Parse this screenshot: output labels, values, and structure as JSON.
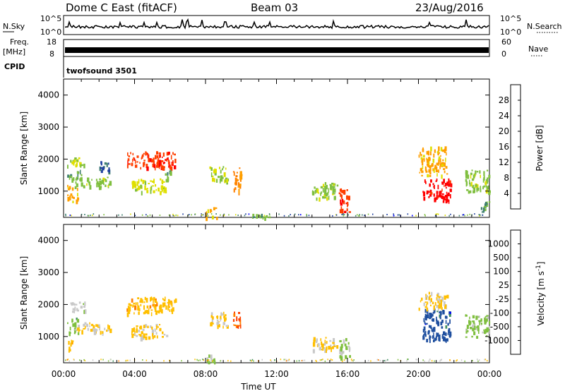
{
  "header": {
    "station": "Dome C East (fitACF)",
    "beam": "Beam 03",
    "date": "23/Aug/2016"
  },
  "strip_labels": {
    "nsky": "N.Sky",
    "nsky_top": "10^5",
    "nsky_bottom": "10^0",
    "nsearch": "N.Search",
    "nsearch_top": "10^5",
    "nsearch_bottom": "10^0",
    "freq": "Freq.",
    "freq_unit": "[MHz]",
    "freq_top": "18",
    "freq_bottom": "8",
    "nave": "Nave",
    "nave_top": "60",
    "nave_bottom": "0",
    "cpid": "CPID",
    "cpid_value": "twofsound 3501"
  },
  "colors": {
    "power": [
      "#0000ff",
      "#1f3f9f",
      "#3f7f6f",
      "#7fbf3f",
      "#dfdf00",
      "#ff9f00",
      "#ff7f00",
      "#ff3f00",
      "#ff0000"
    ],
    "velocity": [
      "#ff0000",
      "#ff4000",
      "#ff8000",
      "#ffbf00",
      "#c8c8c8",
      "#7fbf3f",
      "#3f8f5f",
      "#1f4f9f",
      "#0000ff"
    ]
  },
  "chart_data": [
    {
      "type": "heatmap",
      "name": "power",
      "ylabel": "Slant Range [km]",
      "xlabel": "Time UT",
      "x_ticks": [
        "00:00",
        "04:00",
        "08:00",
        "12:00",
        "16:00",
        "20:00",
        "00:00"
      ],
      "xlim_hours": [
        0,
        24
      ],
      "y_ticks": [
        1000,
        2000,
        3000,
        4000
      ],
      "ylim": [
        180,
        4500
      ],
      "colorbar": {
        "label": "Power [dB]",
        "ticks": [
          4,
          8,
          12,
          16,
          20,
          24,
          28
        ],
        "range": [
          0,
          30
        ]
      },
      "regions": [
        {
          "t": [
            0.2,
            1.2
          ],
          "r": [
            1800,
            2100
          ],
          "value": 14
        },
        {
          "t": [
            0.2,
            1.0
          ],
          "r": [
            1400,
            1700
          ],
          "value": 10
        },
        {
          "t": [
            0.2,
            0.8
          ],
          "r": [
            700,
            1200
          ],
          "value": 18
        },
        {
          "t": [
            0.6,
            2.6
          ],
          "r": [
            1150,
            1450
          ],
          "value": 12
        },
        {
          "t": [
            2.0,
            2.6
          ],
          "r": [
            1600,
            2000
          ],
          "value": 6
        },
        {
          "t": [
            3.5,
            6.3
          ],
          "r": [
            1750,
            2250
          ],
          "value": 26
        },
        {
          "t": [
            3.8,
            5.8
          ],
          "r": [
            1000,
            1400
          ],
          "value": 14
        },
        {
          "t": [
            5.6,
            6.0
          ],
          "r": [
            1300,
            1700
          ],
          "value": 10
        },
        {
          "t": [
            8.0,
            8.6
          ],
          "r": [
            200,
            500
          ],
          "value": 18
        },
        {
          "t": [
            8.2,
            9.2
          ],
          "r": [
            1300,
            1800
          ],
          "value": 14
        },
        {
          "t": [
            9.5,
            10.0
          ],
          "r": [
            1000,
            1800
          ],
          "value": 20
        },
        {
          "t": [
            10.5,
            11.6
          ],
          "r": [
            200,
            300
          ],
          "value": 10
        },
        {
          "t": [
            14.0,
            15.5
          ],
          "r": [
            800,
            1300
          ],
          "value": 12
        },
        {
          "t": [
            15.5,
            16.1
          ],
          "r": [
            350,
            1100
          ],
          "value": 26
        },
        {
          "t": [
            20.2,
            21.8
          ],
          "r": [
            700,
            1400
          ],
          "value": 28
        },
        {
          "t": [
            20.0,
            21.6
          ],
          "r": [
            1500,
            2400
          ],
          "value": 18
        },
        {
          "t": [
            22.6,
            24.0
          ],
          "r": [
            1000,
            1700
          ],
          "value": 12
        },
        {
          "t": [
            23.4,
            24.0
          ],
          "r": [
            350,
            700
          ],
          "value": 10
        }
      ]
    },
    {
      "type": "heatmap",
      "name": "velocity",
      "ylabel": "Slant Range [km]",
      "xlabel": "Time UT",
      "x_ticks": [
        "00:00",
        "04:00",
        "08:00",
        "12:00",
        "16:00",
        "20:00",
        "00:00"
      ],
      "xlim_hours": [
        0,
        24
      ],
      "y_ticks": [
        1000,
        2000,
        3000,
        4000
      ],
      "ylim": [
        180,
        4500
      ],
      "colorbar": {
        "label": "Velocity [m s^-1]",
        "ticks": [
          "-1000",
          "-500",
          "-100",
          "-25",
          "25",
          "100",
          "500",
          "1000"
        ],
        "range": [
          -1200,
          1200
        ]
      },
      "regions": [
        {
          "t": [
            0.2,
            1.2
          ],
          "r": [
            1800,
            2100
          ],
          "value": 10
        },
        {
          "t": [
            0.2,
            0.8
          ],
          "r": [
            1100,
            1600
          ],
          "value": 300
        },
        {
          "t": [
            0.6,
            2.6
          ],
          "r": [
            1150,
            1450
          ],
          "value": -150
        },
        {
          "t": [
            0.2,
            0.5
          ],
          "r": [
            600,
            900
          ],
          "value": -300
        },
        {
          "t": [
            3.5,
            6.3
          ],
          "r": [
            1750,
            2250
          ],
          "value": -300
        },
        {
          "t": [
            3.8,
            5.8
          ],
          "r": [
            1000,
            1400
          ],
          "value": -200
        },
        {
          "t": [
            8.0,
            8.6
          ],
          "r": [
            200,
            500
          ],
          "value": 150
        },
        {
          "t": [
            8.2,
            9.2
          ],
          "r": [
            1300,
            1800
          ],
          "value": -150
        },
        {
          "t": [
            9.5,
            10.0
          ],
          "r": [
            1300,
            1800
          ],
          "value": -700
        },
        {
          "t": [
            14.0,
            15.5
          ],
          "r": [
            600,
            1000
          ],
          "value": -200
        },
        {
          "t": [
            15.5,
            16.1
          ],
          "r": [
            350,
            1000
          ],
          "value": 150
        },
        {
          "t": [
            20.2,
            21.8
          ],
          "r": [
            900,
            1900
          ],
          "value": 800
        },
        {
          "t": [
            20.0,
            21.6
          ],
          "r": [
            1900,
            2400
          ],
          "value": -200
        },
        {
          "t": [
            22.6,
            24.0
          ],
          "r": [
            1000,
            1700
          ],
          "value": 200
        }
      ]
    }
  ]
}
